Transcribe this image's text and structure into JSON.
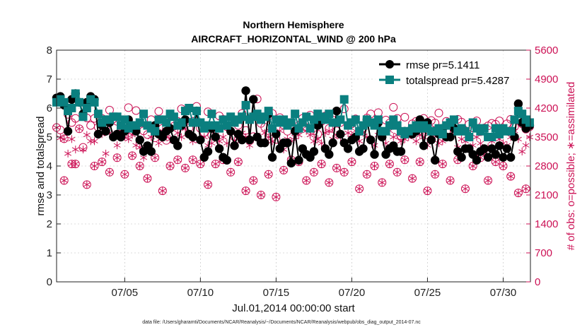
{
  "chart_data": {
    "type": "line",
    "title": [
      "Northern Hemisphere",
      "AIRCRAFT_HORIZONTAL_WIND @ 200 hPa"
    ],
    "xlabel": "Jul.01,2014 00:00:00 start",
    "ylabel_left": "rmse and totalspread",
    "ylabel_right": "# of obs: o=possible; ∗=assimilated",
    "footnote": "data file: /Users/gharamti/Documents/NCAR/Reanalysis/~/Documents/NCAR/Reanalysis/webpub/obs_diag_output_2014-07.nc",
    "xlim": [
      0.5,
      31.8
    ],
    "ylim_left": [
      0,
      8
    ],
    "ylim_right": [
      0,
      5600
    ],
    "x_tick_values": [
      5,
      10,
      15,
      20,
      25,
      30
    ],
    "x_tick_labels": [
      "07/05",
      "07/10",
      "07/15",
      "07/20",
      "07/25",
      "07/30"
    ],
    "y_left_ticks": [
      "0",
      "1",
      "2",
      "3",
      "4",
      "5",
      "6",
      "7",
      "8"
    ],
    "y_right_ticks": [
      "0",
      "700",
      "1400",
      "2100",
      "2800",
      "3500",
      "4200",
      "4900",
      "5600"
    ],
    "colors": {
      "rmse": "#000000",
      "totalspread": "#0a7f7f",
      "obs": "#cc1155",
      "axis": "#222222",
      "grid": "#bdbdbd"
    },
    "x": [
      0.5,
      0.75,
      1.0,
      1.25,
      1.5,
      1.75,
      2.0,
      2.25,
      2.5,
      2.75,
      3.0,
      3.25,
      3.5,
      3.75,
      4.0,
      4.25,
      4.5,
      4.75,
      5.0,
      5.25,
      5.5,
      5.75,
      6.0,
      6.25,
      6.5,
      6.75,
      7.0,
      7.25,
      7.5,
      7.75,
      8.0,
      8.25,
      8.5,
      8.75,
      9.0,
      9.25,
      9.5,
      9.75,
      10.0,
      10.25,
      10.5,
      10.75,
      11.0,
      11.25,
      11.5,
      11.75,
      12.0,
      12.25,
      12.5,
      12.75,
      13.0,
      13.25,
      13.5,
      13.75,
      14.0,
      14.25,
      14.5,
      14.75,
      15.0,
      15.25,
      15.5,
      15.75,
      16.0,
      16.25,
      16.5,
      16.75,
      17.0,
      17.25,
      17.5,
      17.75,
      18.0,
      18.25,
      18.5,
      18.75,
      19.0,
      19.25,
      19.5,
      19.75,
      20.0,
      20.25,
      20.5,
      20.75,
      21.0,
      21.25,
      21.5,
      21.75,
      22.0,
      22.25,
      22.5,
      22.75,
      23.0,
      23.25,
      23.5,
      23.75,
      24.0,
      24.25,
      24.5,
      24.75,
      25.0,
      25.25,
      25.5,
      25.75,
      26.0,
      26.25,
      26.5,
      26.75,
      27.0,
      27.25,
      27.5,
      27.75,
      28.0,
      28.25,
      28.5,
      28.75,
      29.0,
      29.25,
      29.5,
      29.75,
      30.0,
      30.25,
      30.5,
      30.75,
      31.0,
      31.25,
      31.5,
      31.75
    ],
    "series": [
      {
        "name": "rmse",
        "legend": "rmse pr=5.1411",
        "values": [
          6.35,
          6.4,
          6.1,
          5.2,
          6.3,
          6.5,
          6.2,
          5.8,
          6.2,
          6.4,
          6.3,
          5.1,
          5.4,
          5.2,
          5.5,
          5.0,
          5.1,
          5.0,
          5.2,
          5.6,
          5.4,
          5.2,
          4.9,
          4.5,
          4.7,
          4.5,
          5.4,
          5.1,
          5.0,
          5.2,
          5.3,
          4.9,
          4.7,
          5.4,
          5.6,
          5.1,
          5.0,
          5.9,
          4.9,
          4.3,
          4.5,
          5.3,
          5.0,
          4.6,
          4.3,
          4.2,
          5.2,
          4.7,
          5.1,
          4.9,
          6.6,
          4.9,
          6.3,
          5.0,
          4.8,
          4.8,
          5.8,
          4.3,
          5.1,
          4.6,
          4.8,
          4.8,
          4.1,
          5.2,
          4.2,
          4.6,
          4.4,
          4.3,
          4.5,
          5.4,
          5.6,
          4.6,
          4.4,
          4.8,
          5.9,
          5.1,
          4.8,
          4.6,
          4.9,
          5.0,
          4.5,
          4.6,
          5.6,
          4.9,
          4.4,
          5.5,
          5.0,
          4.4,
          4.6,
          4.7,
          4.5,
          4.5,
          5.2,
          5.2,
          5.1,
          5.2,
          5.6,
          4.7,
          5.5,
          4.9,
          4.2,
          5.1,
          5.3,
          5.0,
          5.0,
          5.3,
          4.5,
          4.3,
          4.6,
          4.6,
          4.4,
          4.2,
          4.5,
          4.6,
          4.3,
          4.6,
          4.4,
          4.7,
          4.3,
          4.6,
          4.3,
          5.0,
          6.15,
          5.5,
          5.3,
          5.4
        ]
      },
      {
        "name": "totalspread",
        "legend": "totalspread pr=5.4287",
        "values": [
          6.2,
          6.3,
          6.2,
          5.9,
          6.0,
          6.5,
          6.2,
          5.7,
          6.0,
          6.3,
          6.2,
          5.8,
          5.5,
          5.6,
          5.6,
          5.7,
          5.7,
          5.4,
          5.6,
          5.3,
          5.4,
          5.4,
          5.5,
          5.8,
          5.4,
          5.3,
          5.2,
          5.6,
          5.6,
          5.5,
          5.8,
          5.7,
          5.4,
          5.5,
          5.9,
          6.0,
          5.5,
          5.9,
          5.5,
          5.3,
          5.4,
          5.8,
          5.4,
          5.3,
          5.6,
          5.4,
          5.7,
          5.5,
          5.6,
          5.7,
          6.1,
          5.6,
          5.7,
          5.8,
          5.6,
          5.7,
          5.9,
          5.3,
          5.6,
          5.5,
          5.6,
          5.4,
          5.5,
          5.8,
          5.3,
          5.5,
          5.7,
          5.3,
          5.6,
          5.8,
          5.7,
          5.6,
          5.8,
          5.5,
          5.5,
          5.6,
          6.3,
          5.4,
          5.5,
          5.6,
          5.2,
          5.4,
          5.6,
          5.5,
          5.4,
          5.6,
          5.2,
          5.2,
          5.4,
          5.6,
          5.4,
          5.2,
          5.1,
          5.2,
          5.3,
          5.4,
          5.3,
          5.4,
          5.3,
          5.2,
          5.2,
          5.3,
          5.1,
          5.4,
          5.5,
          5.6,
          5.2,
          5.3,
          5.2,
          5.0,
          5.5,
          5.3,
          5.2,
          5.3,
          5.0,
          5.0,
          5.3,
          5.1,
          5.3,
          5.2,
          5.2,
          5.6,
          5.9,
          5.8,
          5.6,
          5.5
        ]
      },
      {
        "name": "obs_possible",
        "values": [
          3730,
          3670,
          3460,
          4050,
          3850,
          3950,
          3700,
          3250,
          3960,
          3780,
          3950,
          3740,
          3950,
          3760,
          4150,
          3940,
          3880,
          3710,
          3560,
          4210,
          3660,
          4140,
          3840,
          3650,
          3560,
          3920,
          3480,
          4120,
          3710,
          3420,
          4050,
          3760,
          3880,
          4180,
          3910,
          3720,
          3880,
          4240,
          3710,
          3610,
          4110,
          3540,
          3730,
          4010,
          3930,
          3750,
          3890,
          3520,
          3780,
          4070,
          3660,
          3940,
          3510,
          4420,
          3830,
          3740,
          4000,
          4070,
          3440,
          3970,
          3790,
          3640,
          3810,
          3930,
          3690,
          3950,
          3730,
          4030,
          3650,
          3570,
          3880,
          4010,
          3710,
          3910,
          3650,
          3850,
          4180,
          3790,
          3820,
          3940,
          3630,
          3720,
          3960,
          4060,
          3810,
          4090,
          3600,
          3910,
          3840,
          4220,
          3950,
          3530,
          3980,
          3640,
          3820,
          3880,
          3720,
          3950,
          3670,
          3900,
          3840,
          4080,
          3690,
          3880,
          3810,
          3650,
          3930,
          3860,
          3650,
          3810,
          3720,
          3890,
          3630,
          3720,
          3770,
          3830,
          3810,
          3890,
          3690,
          3820,
          3930,
          3750,
          4090,
          3820,
          3690,
          3750
        ]
      },
      {
        "name": "obs_assimilated",
        "values": [
          3730,
          3480,
          3450,
          3100,
          3450,
          3200,
          3700,
          3200,
          3550,
          3400,
          3400,
          3550,
          3570,
          3100,
          3600,
          3500,
          3300,
          3650,
          3500,
          3450,
          3550,
          3300,
          3250,
          3000,
          3200,
          3500,
          3600,
          3350,
          3650,
          3500,
          3450,
          3400,
          3600,
          3500,
          3700,
          3550,
          3400,
          3450,
          3450,
          3500,
          3300,
          3350,
          3550,
          3400,
          3500,
          3350,
          3600,
          3400,
          3450,
          3600,
          3500,
          3300,
          3450,
          3550,
          3350,
          3600,
          3500,
          3400,
          3550,
          3650,
          3200,
          3450,
          3400,
          3500,
          3550,
          3700,
          3650,
          3550,
          3400,
          3450,
          3350,
          3600,
          3650,
          3450,
          3550,
          3500,
          3350,
          3600,
          3550,
          3650,
          3400,
          3600,
          3500,
          3450,
          3300,
          3550,
          3500,
          3350,
          3650,
          3500,
          3550,
          3400,
          3450,
          3500,
          3600,
          3400,
          3550,
          3500,
          3300,
          3450,
          3550,
          3350,
          3400,
          3550,
          3500,
          3600,
          3250,
          3450,
          3400,
          3550,
          3300,
          3500,
          3350,
          3100,
          3250,
          3400,
          3500,
          3450,
          3350,
          3300,
          3500,
          3650,
          3450,
          3150,
          3300,
          3500
        ]
      }
    ],
    "obs_low_circles": [
      {
        "x": 1.0,
        "v": 2450
      },
      {
        "x": 1.5,
        "v": 2850
      },
      {
        "x": 1.75,
        "v": 2850
      },
      {
        "x": 2.5,
        "v": 2350
      },
      {
        "x": 3.0,
        "v": 2800
      },
      {
        "x": 3.5,
        "v": 2900
      },
      {
        "x": 4.0,
        "v": 2650
      },
      {
        "x": 4.5,
        "v": 3000
      },
      {
        "x": 5.0,
        "v": 2600
      },
      {
        "x": 5.5,
        "v": 3050
      },
      {
        "x": 6.0,
        "v": 2800
      },
      {
        "x": 6.5,
        "v": 2500
      },
      {
        "x": 7.0,
        "v": 3000
      },
      {
        "x": 7.5,
        "v": 2200
      },
      {
        "x": 8.0,
        "v": 2800
      },
      {
        "x": 8.5,
        "v": 2950
      },
      {
        "x": 9.0,
        "v": 2750
      },
      {
        "x": 9.5,
        "v": 2950
      },
      {
        "x": 10.0,
        "v": 2850
      },
      {
        "x": 10.5,
        "v": 2350
      },
      {
        "x": 11.0,
        "v": 2850
      },
      {
        "x": 11.5,
        "v": 2950
      },
      {
        "x": 12.0,
        "v": 2650
      },
      {
        "x": 12.5,
        "v": 2900
      },
      {
        "x": 13.0,
        "v": 2200
      },
      {
        "x": 13.5,
        "v": 2450
      },
      {
        "x": 14.0,
        "v": 2100
      },
      {
        "x": 14.5,
        "v": 2600
      },
      {
        "x": 15.0,
        "v": 2050
      },
      {
        "x": 15.5,
        "v": 2700
      },
      {
        "x": 16.0,
        "v": 2950
      },
      {
        "x": 16.5,
        "v": 2900
      },
      {
        "x": 17.0,
        "v": 2450
      },
      {
        "x": 17.5,
        "v": 2650
      },
      {
        "x": 18.0,
        "v": 2850
      },
      {
        "x": 18.5,
        "v": 2400
      },
      {
        "x": 19.0,
        "v": 2750
      },
      {
        "x": 19.5,
        "v": 2650
      },
      {
        "x": 20.0,
        "v": 2900
      },
      {
        "x": 20.5,
        "v": 2250
      },
      {
        "x": 21.0,
        "v": 2600
      },
      {
        "x": 21.5,
        "v": 2800
      },
      {
        "x": 22.0,
        "v": 2400
      },
      {
        "x": 22.5,
        "v": 2850
      },
      {
        "x": 23.0,
        "v": 2650
      },
      {
        "x": 23.5,
        "v": 2950
      },
      {
        "x": 24.0,
        "v": 2500
      },
      {
        "x": 24.5,
        "v": 2900
      },
      {
        "x": 25.0,
        "v": 2200
      },
      {
        "x": 25.5,
        "v": 2600
      },
      {
        "x": 26.0,
        "v": 2850
      },
      {
        "x": 26.5,
        "v": 2450
      },
      {
        "x": 27.0,
        "v": 2950
      },
      {
        "x": 27.5,
        "v": 2250
      },
      {
        "x": 28.0,
        "v": 2800
      },
      {
        "x": 28.5,
        "v": 3000
      },
      {
        "x": 29.0,
        "v": 2450
      },
      {
        "x": 29.5,
        "v": 2900
      },
      {
        "x": 30.0,
        "v": 2800
      },
      {
        "x": 30.5,
        "v": 2550
      },
      {
        "x": 31.0,
        "v": 2150
      },
      {
        "x": 31.5,
        "v": 2250
      }
    ]
  }
}
